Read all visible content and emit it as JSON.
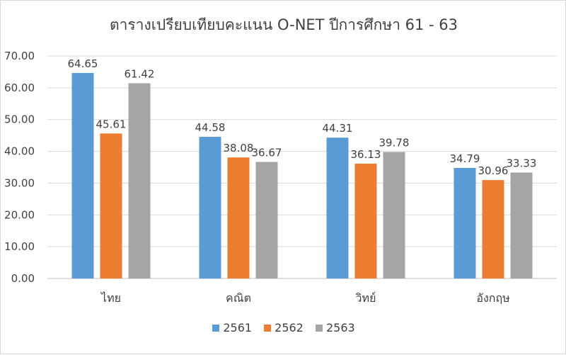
{
  "chart_data": {
    "type": "bar",
    "title": "ตารางเปรียบเทียบคะแนน O-NET ปีการศึกษา 61 - 63",
    "categories": [
      "ไทย",
      "คณิต",
      "วิทย์",
      "อังกฤษ"
    ],
    "series": [
      {
        "name": "2561",
        "color": "#5b9bd5",
        "values": [
          64.65,
          44.58,
          44.31,
          34.79
        ],
        "labels": [
          "64.65",
          "44.58",
          "44.31",
          "34.79"
        ]
      },
      {
        "name": "2562",
        "color": "#ed7d31",
        "values": [
          45.61,
          38.08,
          36.13,
          30.96
        ],
        "labels": [
          "45.61",
          "38.08",
          "36.13",
          "30.96"
        ]
      },
      {
        "name": "2563",
        "color": "#a5a5a5",
        "values": [
          61.42,
          36.67,
          39.78,
          33.33
        ],
        "labels": [
          "61.42",
          "36.67",
          "39.78",
          "33.33"
        ]
      }
    ],
    "ylim": [
      0,
      70
    ],
    "yticks": [
      "0.00",
      "10.00",
      "20.00",
      "30.00",
      "40.00",
      "50.00",
      "60.00",
      "70.00"
    ],
    "grid": true,
    "legend_position": "bottom",
    "xlabel": "",
    "ylabel": ""
  }
}
